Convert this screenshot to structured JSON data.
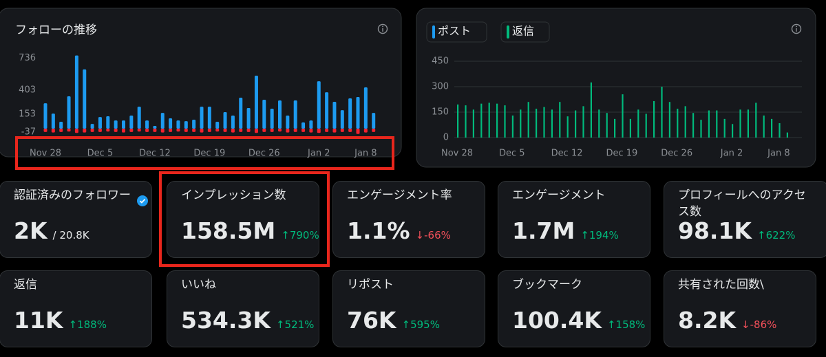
{
  "chart_data": [
    {
      "type": "bar",
      "title": "フォローの推移",
      "categories": [
        "Nov 28",
        null,
        null,
        null,
        null,
        null,
        null,
        "Dec 5",
        null,
        null,
        null,
        null,
        null,
        null,
        "Dec 12",
        null,
        null,
        null,
        null,
        null,
        null,
        "Dec 19",
        null,
        null,
        null,
        null,
        null,
        null,
        "Dec 26",
        null,
        null,
        null,
        null,
        null,
        null,
        "Jan 2",
        null,
        null,
        null,
        null,
        null,
        "Jan 8",
        null
      ],
      "series": [
        {
          "color": "#1d9bf0",
          "values": [
            266,
            158,
            72,
            338,
            765,
            620,
            50,
            122,
            130,
            86,
            86,
            137,
            230,
            86,
            29,
            165,
            108,
            86,
            79,
            94,
            230,
            230,
            72,
            173,
            137,
            324,
            216,
            554,
            302,
            209,
            295,
            137,
            295,
            65,
            86,
            496,
            381,
            281,
            194,
            317,
            331,
            432,
            165
          ]
        },
        {
          "color": "#f4212e",
          "values": [
            -35,
            -40,
            -35,
            -30,
            -45,
            -40,
            -35,
            -35,
            -30,
            -35,
            -40,
            -35,
            -30,
            -35,
            -35,
            -40,
            -35,
            -30,
            -35,
            -35,
            -40,
            -35,
            -30,
            -35,
            -40,
            -35,
            -35,
            -45,
            -35,
            -35,
            -30,
            -40,
            -35,
            -35,
            -40,
            -45,
            -35,
            -40,
            -35,
            -35,
            -55,
            -40,
            -35
          ]
        }
      ],
      "ylim": [
        -50,
        780
      ],
      "yticks": [
        736,
        403,
        153,
        -37
      ],
      "grid": false
    },
    {
      "type": "bar",
      "categories": [
        "Nov 28",
        null,
        null,
        null,
        null,
        null,
        null,
        "Dec 5",
        null,
        null,
        null,
        null,
        null,
        null,
        "Dec 12",
        null,
        null,
        null,
        null,
        null,
        null,
        "Dec 19",
        null,
        null,
        null,
        null,
        null,
        null,
        "Dec 26",
        null,
        null,
        null,
        null,
        null,
        null,
        "Jan 2",
        null,
        null,
        null,
        null,
        null,
        "Jan 8",
        null
      ],
      "series": [
        {
          "name": "ポスト",
          "color": "#1d9bf0",
          "values": [
            0,
            0,
            0,
            0,
            0,
            0,
            0,
            0,
            0,
            0,
            0,
            0,
            0,
            0,
            0,
            0,
            0,
            0,
            0,
            0,
            0,
            0,
            0,
            0,
            0,
            0,
            0,
            0,
            0,
            0,
            0,
            0,
            0,
            0,
            0,
            0,
            0,
            0,
            0,
            0,
            0,
            0,
            0
          ]
        },
        {
          "name": "返信",
          "color": "#00ba7c",
          "values": [
            195,
            190,
            165,
            200,
            205,
            200,
            190,
            130,
            165,
            210,
            170,
            180,
            165,
            210,
            125,
            160,
            185,
            325,
            165,
            145,
            110,
            255,
            110,
            165,
            140,
            215,
            300,
            210,
            170,
            185,
            145,
            105,
            160,
            160,
            110,
            80,
            165,
            165,
            205,
            130,
            110,
            85,
            30
          ]
        }
      ],
      "ylim": [
        0,
        450
      ],
      "yticks": [
        450,
        300,
        150,
        0
      ],
      "grid": true
    }
  ],
  "cards": [
    {
      "label": "認証済みのフォロワー",
      "value": "2K",
      "sub": "/ 20.8K",
      "verified": true
    },
    {
      "label": "インプレッション数",
      "value": "158.5M",
      "change": "790%",
      "trend": "up"
    },
    {
      "label": "エンゲージメント率",
      "value": "1.1%",
      "change": "-66%",
      "trend": "down"
    },
    {
      "label": "エンゲージメント",
      "value": "1.7M",
      "change": "194%",
      "trend": "up"
    },
    {
      "label": "プロフィールへのアクセス数",
      "value": "98.1K",
      "change": "622%",
      "trend": "up"
    },
    {
      "label": "返信",
      "value": "11K",
      "change": "188%",
      "trend": "up"
    },
    {
      "label": "いいね",
      "value": "534.3K",
      "change": "521%",
      "trend": "up"
    },
    {
      "label": "リポスト",
      "value": "76K",
      "change": "595%",
      "trend": "up"
    },
    {
      "label": "ブックマーク",
      "value": "100.4K",
      "change": "158%",
      "trend": "up"
    },
    {
      "label": "共有された回数\\",
      "value": "8.2K",
      "change": "-86%",
      "trend": "down"
    }
  ]
}
